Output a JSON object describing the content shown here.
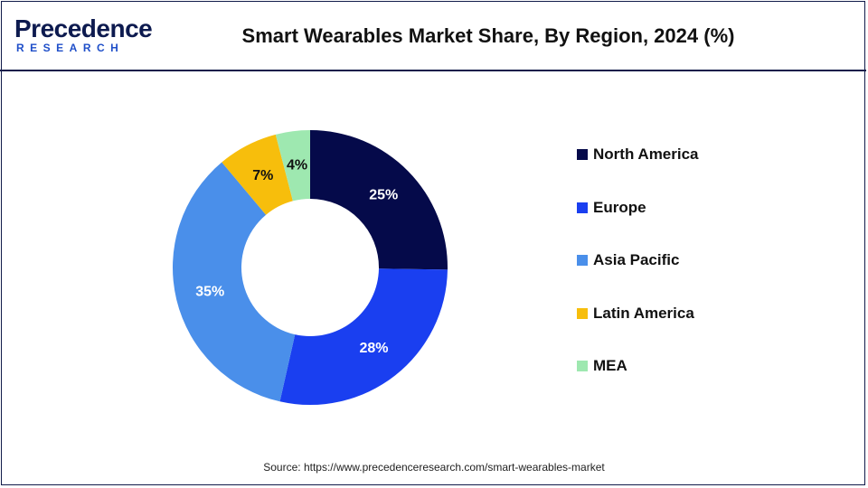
{
  "header": {
    "logo_word": "Precedence",
    "logo_sub": "RESEARCH",
    "title": "Smart Wearables Market Share, By Region, 2024 (%)"
  },
  "footer": {
    "source": "Source: https://www.precedenceresearch.com/smart-wearables-market"
  },
  "chart_data": {
    "type": "pie",
    "variant": "donut",
    "title": "Smart Wearables Market Share, By Region, 2024 (%)",
    "categories": [
      "North America",
      "Europe",
      "Asia Pacific",
      "Latin America",
      "MEA"
    ],
    "values": [
      25,
      28,
      35,
      7,
      4
    ],
    "labels": [
      "25%",
      "28%",
      "35%",
      "7%",
      "4%"
    ],
    "colors": [
      "#050a4a",
      "#1a3ff0",
      "#4a8fea",
      "#f7be0c",
      "#9ee8b0"
    ],
    "label_colors": [
      "#ffffff",
      "#ffffff",
      "#ffffff",
      "#111111",
      "#111111"
    ],
    "legend_position": "right"
  }
}
